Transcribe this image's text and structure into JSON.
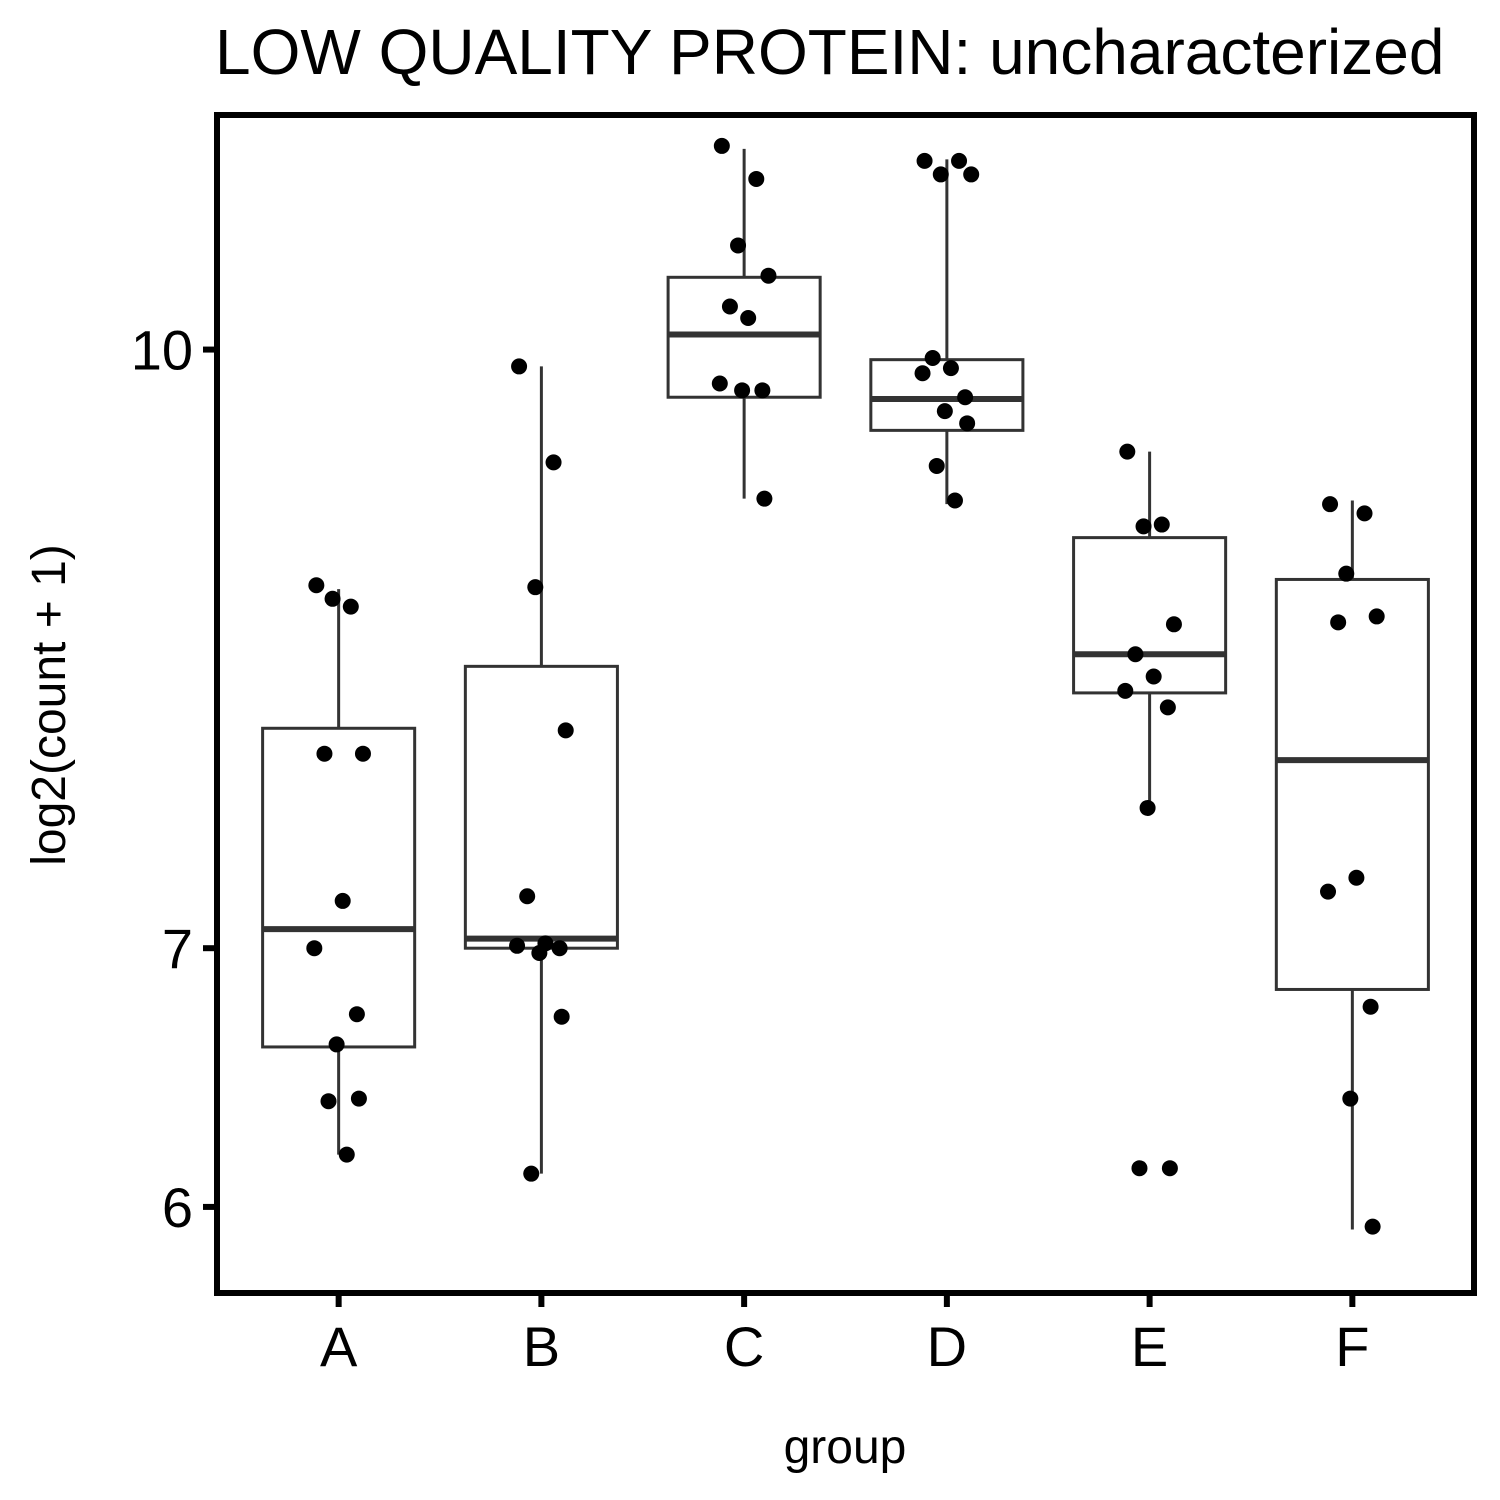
{
  "chart_data": {
    "type": "box",
    "title": "LOW QUALITY PROTEIN: uncharacterized",
    "xlabel": "group",
    "ylabel": "log2(count + 1)",
    "y_scale": "log2",
    "y_ticks": [
      6,
      7,
      10
    ],
    "ylim": [
      5.7,
      11.5
    ],
    "grid": false,
    "legend": "none",
    "categories": [
      "A",
      "B",
      "C",
      "D",
      "E",
      "F"
    ],
    "boxes": [
      {
        "group": "A",
        "whisker_low": 6.19,
        "q1": 6.6,
        "median": 7.08,
        "q3": 7.98,
        "whisker_high": 8.67
      },
      {
        "group": "B",
        "whisker_low": 6.12,
        "q1": 7.0,
        "median": 7.04,
        "q3": 8.28,
        "whisker_high": 9.9
      },
      {
        "group": "C",
        "whisker_low": 9.15,
        "q1": 9.72,
        "median": 10.09,
        "q3": 10.44,
        "whisker_high": 11.27
      },
      {
        "group": "D",
        "whisker_low": 9.12,
        "q1": 9.53,
        "median": 9.71,
        "q3": 9.94,
        "whisker_high": 11.2
      },
      {
        "group": "E",
        "whisker_low": 7.59,
        "q1": 8.15,
        "median": 8.34,
        "q3": 8.94,
        "whisker_high": 9.41
      },
      {
        "group": "F",
        "whisker_low": 5.92,
        "q1": 6.83,
        "median": 7.83,
        "q3": 8.72,
        "whisker_high": 9.14
      }
    ],
    "points": {
      "A": [
        8.69,
        8.58,
        8.62,
        7.86,
        7.86,
        7.2,
        7.0,
        6.73,
        6.61,
        6.4,
        6.39,
        6.19
      ],
      "B": [
        9.9,
        9.35,
        8.68,
        7.97,
        7.22,
        7.02,
        7.01,
        7.0,
        6.98,
        6.72,
        6.12
      ],
      "C": [
        11.29,
        11.07,
        10.64,
        10.45,
        10.26,
        10.19,
        9.8,
        9.76,
        9.76,
        9.15
      ],
      "D": [
        11.19,
        11.19,
        11.1,
        11.1,
        9.95,
        9.89,
        9.86,
        9.72,
        9.64,
        9.57,
        9.33,
        9.14
      ],
      "E": [
        9.41,
        9.01,
        9.0,
        8.49,
        8.34,
        8.23,
        8.16,
        8.08,
        7.61,
        6.14,
        6.14
      ],
      "F": [
        9.12,
        9.07,
        8.75,
        8.53,
        8.5,
        7.3,
        7.24,
        6.76,
        6.4,
        5.93
      ]
    }
  }
}
